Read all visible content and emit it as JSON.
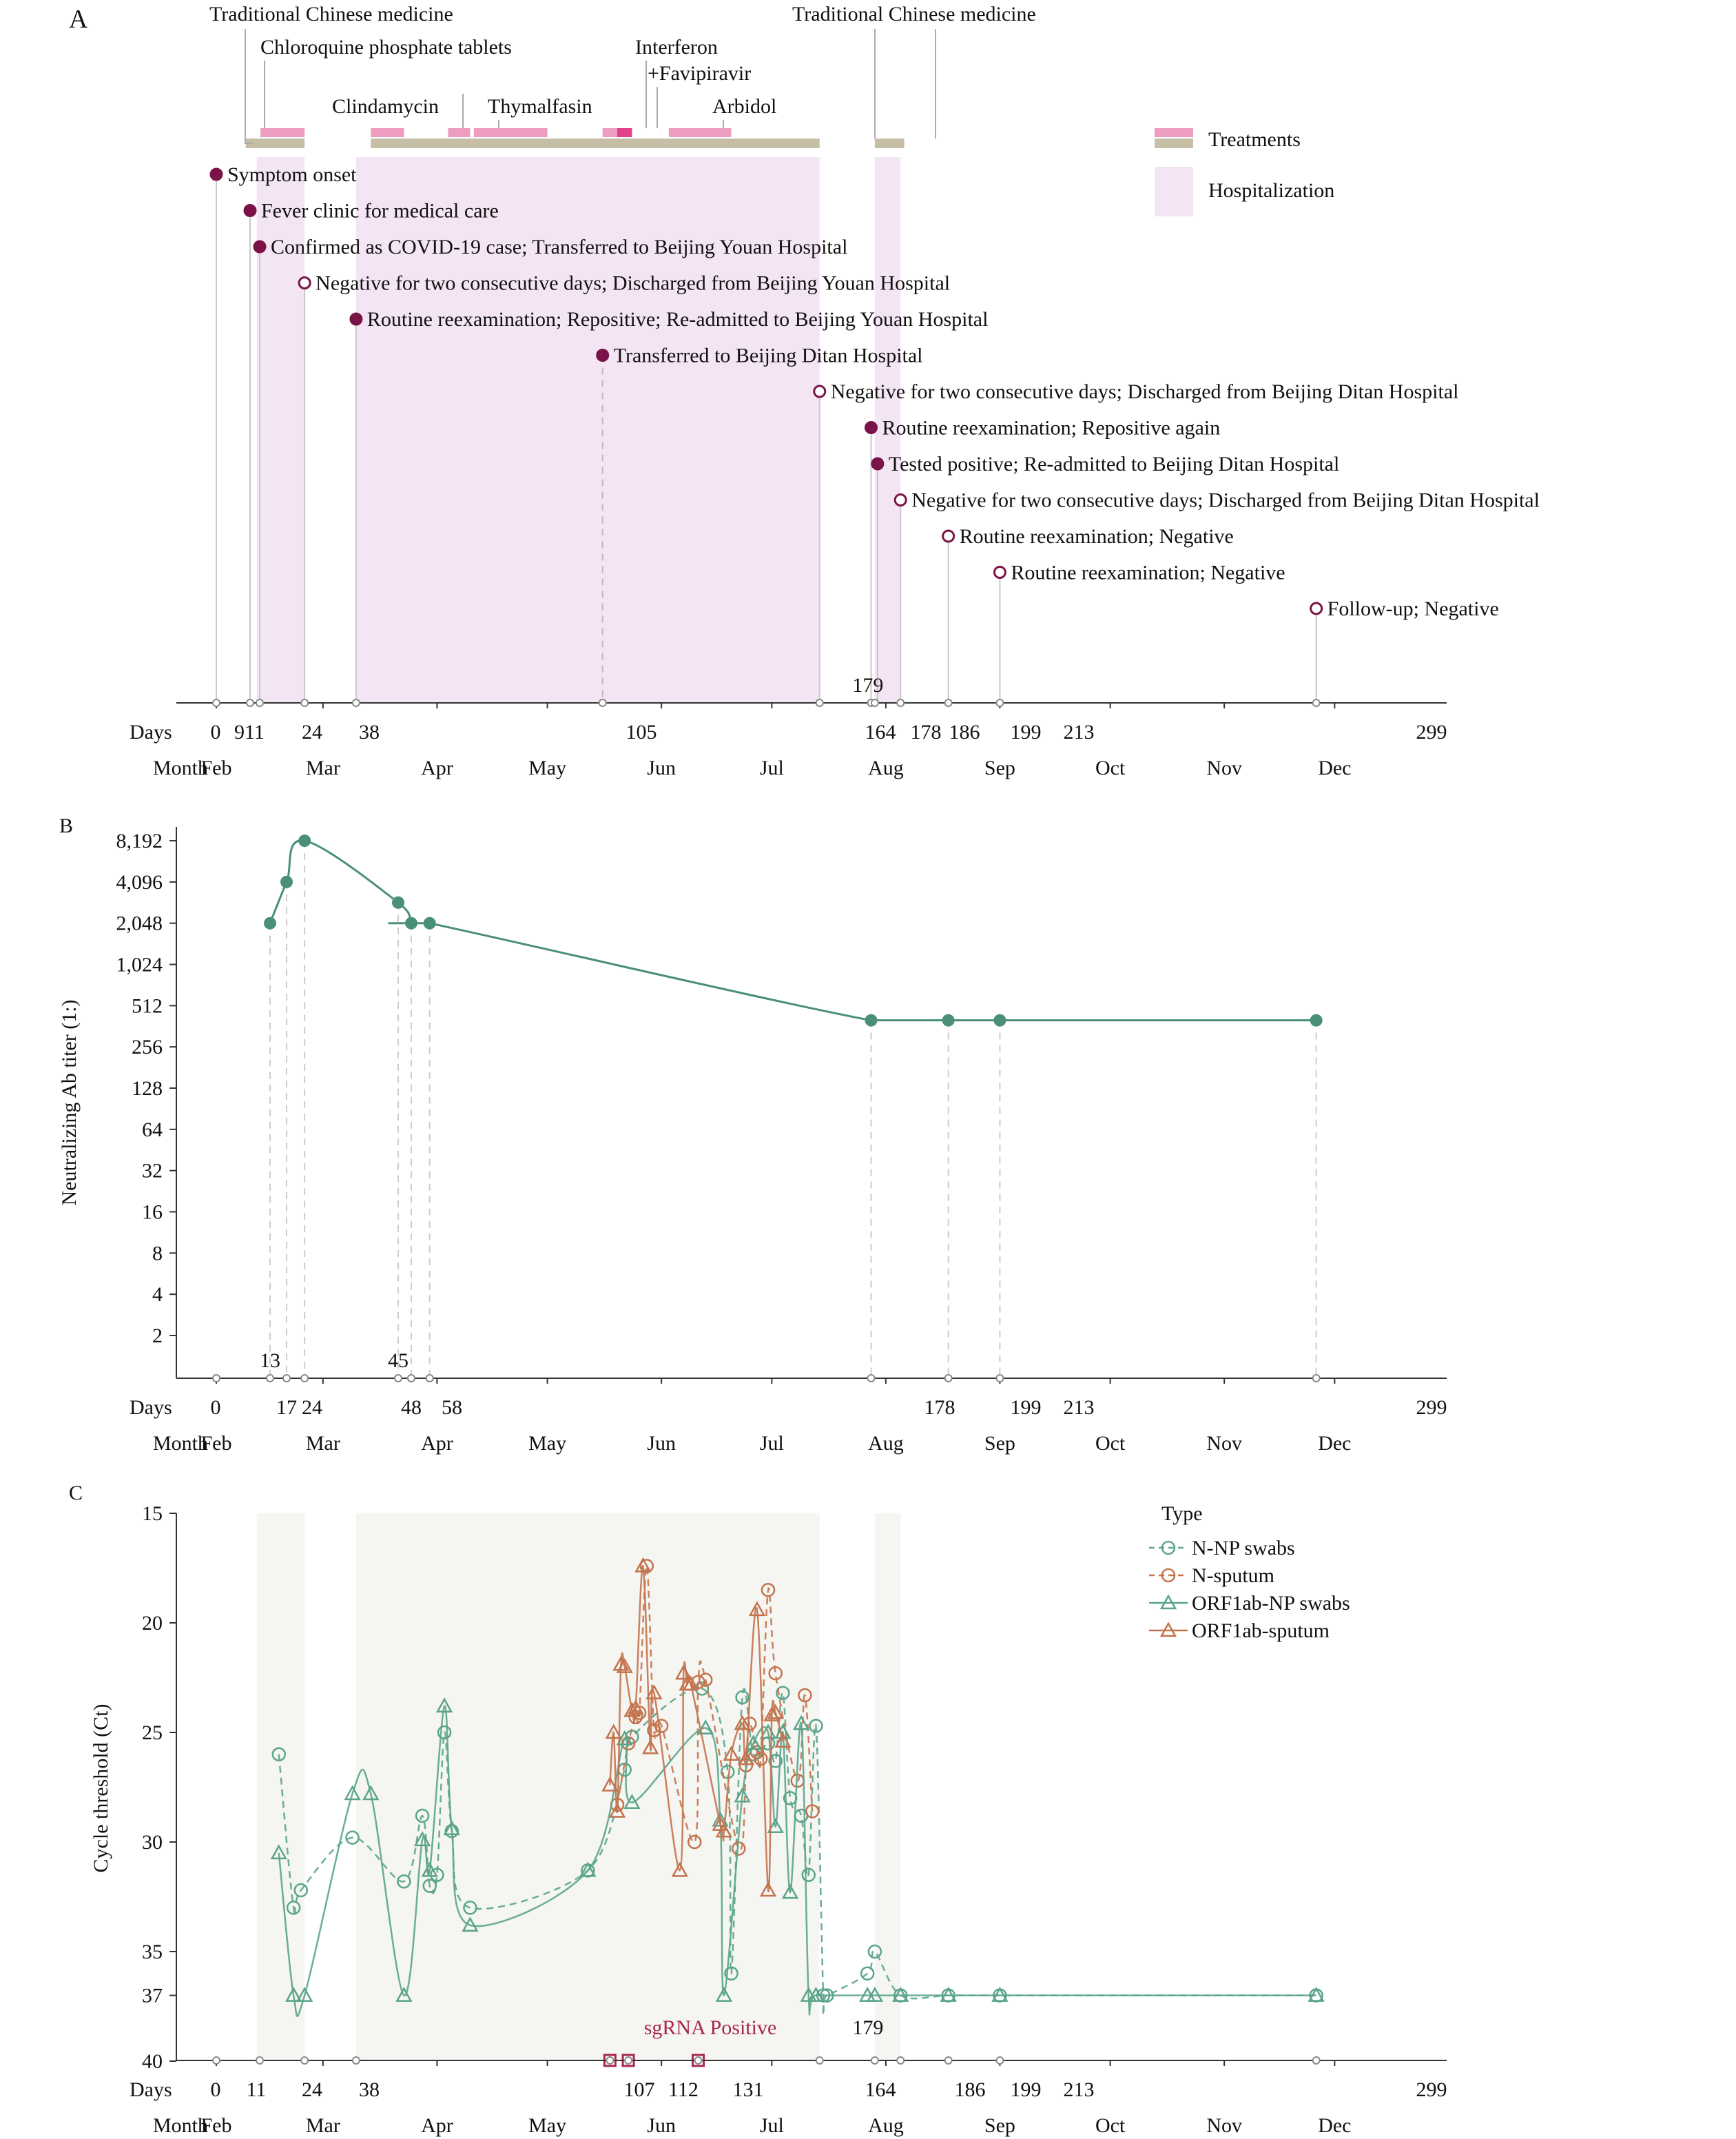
{
  "chart_data": [
    {
      "panel": "A",
      "type": "timeline",
      "x_tick_days": [
        0,
        9,
        11,
        24,
        38,
        105,
        164,
        178,
        179,
        186,
        199,
        213,
        299
      ],
      "tick_labels": [
        "0",
        "911",
        "24",
        "38",
        "105",
        "164",
        "178",
        "186",
        "199",
        "213",
        "299"
      ],
      "extra_label": {
        "text": "179",
        "day": 179
      },
      "axis_labels": {
        "days": "Days",
        "month": "Month"
      },
      "months": [
        {
          "label": "Feb",
          "day": 0
        },
        {
          "label": "Mar",
          "day": 29
        },
        {
          "label": "Apr",
          "day": 60
        },
        {
          "label": "May",
          "day": 90
        },
        {
          "label": "Jun",
          "day": 121
        },
        {
          "label": "Jul",
          "day": 151
        },
        {
          "label": "Aug",
          "day": 182
        },
        {
          "label": "Sep",
          "day": 213
        },
        {
          "label": "Oct",
          "day": 243
        },
        {
          "label": "Nov",
          "day": 274
        },
        {
          "label": "Dec",
          "day": 304
        }
      ],
      "hospitalization": [
        {
          "start": 11,
          "end": 24
        },
        {
          "start": 38,
          "end": 164
        },
        {
          "start": 179,
          "end": 186
        }
      ],
      "treatments": [
        {
          "start": 12,
          "end": 24
        },
        {
          "start": 42,
          "end": 51
        },
        {
          "start": 63,
          "end": 69
        },
        {
          "start": 70,
          "end": 90
        },
        {
          "start": 105,
          "end": 113
        },
        {
          "start": 123,
          "end": 140
        }
      ],
      "treatment_dark": [
        {
          "start": 109,
          "end": 113
        }
      ],
      "treatment_periods": [
        {
          "start": 8,
          "end": 24
        },
        {
          "start": 42,
          "end": 164
        },
        {
          "start": 179,
          "end": 187
        }
      ],
      "drug_labels": [
        {
          "text": "Traditional Chinese medicine",
          "day": 6,
          "level": 0
        },
        {
          "text": "Chloroquine phosphate tablets",
          "day": 12,
          "level": 1
        },
        {
          "text": "Clindamycin",
          "day": 46,
          "level": 2
        },
        {
          "text": "Thymalfasin",
          "day": 70,
          "level": 2
        },
        {
          "text": "Interferon",
          "day": 105,
          "level": 1
        },
        {
          "text": "+Favipiravir",
          "day": 108,
          "level": 1.5
        },
        {
          "text": "Arbidol",
          "day": 124,
          "level": 2
        },
        {
          "text": "Traditional Chinese medicine",
          "day": 164,
          "level": 0
        }
      ],
      "events": [
        {
          "day": 0,
          "text": "Symptom onset",
          "positive": true
        },
        {
          "day": 9,
          "text": "Fever clinic for medical care",
          "positive": true
        },
        {
          "day": 11,
          "text": "Confirmed as COVID-19 case; Transferred to Beijing Youan Hospital",
          "positive": true
        },
        {
          "day": 24,
          "text": "Negative for two consecutive days; Discharged from Beijing Youan Hospital",
          "positive": false
        },
        {
          "day": 38,
          "text": "Routine reexamination; Repositive; Re-admitted to Beijing Youan Hospital",
          "positive": true
        },
        {
          "day": 105,
          "text": "Transferred to Beijing Ditan Hospital",
          "positive": true
        },
        {
          "day": 164,
          "text": "Negative for two consecutive days; Discharged from Beijing Ditan Hospital",
          "positive": false
        },
        {
          "day": 178,
          "text": "Routine reexamination; Repositive again",
          "positive": true
        },
        {
          "day": 179,
          "text": "Tested positive; Re-admitted to Beijing Ditan Hospital",
          "positive": true
        },
        {
          "day": 186,
          "text": "Negative for two consecutive days; Discharged from Beijing Ditan Hospital",
          "positive": false
        },
        {
          "day": 199,
          "text": "Routine reexamination; Negative",
          "positive": false
        },
        {
          "day": 213,
          "text": "Routine reexamination; Negative",
          "positive": false
        },
        {
          "day": 299,
          "text": "Follow-up; Negative",
          "positive": false
        }
      ],
      "legend": [
        {
          "label": "Treatments",
          "color": "#ee9cc0",
          "secondary_color": "#c6bfa6"
        },
        {
          "label": "Hospitalization",
          "color": "#f4e5f4"
        }
      ]
    },
    {
      "panel": "B",
      "type": "line",
      "ylabel": "Neutralizing Ab titer (1:)",
      "y_scale": "log2",
      "y_ticks": [
        "2",
        "4",
        "8",
        "16",
        "32",
        "64",
        "128",
        "256",
        "512",
        "1,024",
        "2,048",
        "4,096",
        "8,192"
      ],
      "x_tick_days": [
        0,
        13,
        17,
        24,
        45,
        48,
        58,
        178,
        199,
        213,
        299
      ],
      "tick_labels": [
        "0",
        "17",
        "24",
        "48",
        "58",
        "178",
        "199",
        "213",
        "299"
      ],
      "upper_labels": [
        {
          "text": "13",
          "day": 13
        },
        {
          "text": "45",
          "day": 45
        }
      ],
      "axis_labels": {
        "days": "Days",
        "month": "Month"
      },
      "series": [
        {
          "name": "",
          "color": "#4a8f78",
          "points": [
            {
              "x": 13,
              "y": 2048
            },
            {
              "x": 17,
              "y": 4096
            },
            {
              "x": 24,
              "y": 8192
            },
            {
              "x": 45,
              "y": 2896
            },
            {
              "x": 48,
              "y": 2048
            },
            {
              "x": 58,
              "y": 2048
            },
            {
              "x": 178,
              "y": 400
            },
            {
              "x": 199,
              "y": 400
            },
            {
              "x": 213,
              "y": 400
            },
            {
              "x": 299,
              "y": 400
            }
          ]
        }
      ]
    },
    {
      "panel": "C",
      "type": "line",
      "ylabel": "Cycle threshold (Ct)",
      "y_inverted": true,
      "y_ticks": [
        15,
        20,
        25,
        30,
        35,
        37,
        40
      ],
      "x_tick_days": [
        0,
        11,
        24,
        38,
        107,
        112,
        131,
        164,
        179,
        186,
        199,
        213,
        299
      ],
      "tick_labels": [
        "0",
        "11",
        "24",
        "38",
        "107",
        "112",
        "131",
        "164",
        "186",
        "199",
        "213",
        "299"
      ],
      "extra_label": {
        "text": "179",
        "day": 179
      },
      "axis_labels": {
        "days": "Days",
        "month": "Month"
      },
      "sgRNA": {
        "label": "sgRNA Positive",
        "days": [
          107,
          112,
          131
        ],
        "color": "#a8264a"
      },
      "shaded": [
        {
          "start": 11,
          "end": 24
        },
        {
          "start": 38,
          "end": 164
        },
        {
          "start": 179,
          "end": 186
        }
      ],
      "legend_title": "Type",
      "series": [
        {
          "name": "N-NP swabs",
          "marker": "circle",
          "color": "#5aa58a",
          "dashed": true,
          "points": [
            [
              17,
              26
            ],
            [
              21,
              33
            ],
            [
              23,
              32.2
            ],
            [
              37,
              29.8
            ],
            [
              51,
              31.8
            ],
            [
              56,
              28.8
            ],
            [
              58,
              32
            ],
            [
              60,
              31.5
            ],
            [
              62,
              25
            ],
            [
              64,
              29.5
            ],
            [
              69,
              33
            ],
            [
              101,
              31.3
            ],
            [
              111,
              26.7
            ],
            [
              113,
              25.2
            ],
            [
              132,
              23
            ],
            [
              139,
              26.8
            ],
            [
              140,
              36
            ],
            [
              143,
              23.4
            ],
            [
              146,
              26
            ],
            [
              150,
              25.5
            ],
            [
              152,
              26.3
            ],
            [
              154,
              23.2
            ],
            [
              156,
              28
            ],
            [
              159,
              28.8
            ],
            [
              161,
              31.5
            ],
            [
              163,
              24.7
            ],
            [
              165,
              37
            ],
            [
              166,
              37
            ],
            [
              177,
              36
            ],
            [
              179,
              35
            ],
            [
              186,
              37
            ],
            [
              199,
              37
            ],
            [
              213,
              37
            ],
            [
              299,
              37
            ]
          ]
        },
        {
          "name": "N-sputum",
          "marker": "circle",
          "color": "#c4734d",
          "dashed": true,
          "points": [
            [
              109,
              28.3
            ],
            [
              112,
              25.5
            ],
            [
              114,
              24.3
            ],
            [
              115,
              24.1
            ],
            [
              117,
              17.4
            ],
            [
              119,
              24.9
            ],
            [
              121,
              24.7
            ],
            [
              130,
              30
            ],
            [
              131,
              22.7
            ],
            [
              133,
              22.6
            ],
            [
              142,
              30.3
            ],
            [
              144,
              26.5
            ],
            [
              145,
              24.6
            ],
            [
              147,
              25.9
            ],
            [
              148,
              26.2
            ],
            [
              150,
              18.5
            ],
            [
              152,
              22.3
            ],
            [
              158,
              27.2
            ],
            [
              160,
              23.3
            ],
            [
              162,
              28.6
            ]
          ]
        },
        {
          "name": "ORF1ab-NP swabs",
          "marker": "triangle",
          "color": "#5aa58a",
          "dashed": false,
          "points": [
            [
              17,
              30.5
            ],
            [
              21,
              37
            ],
            [
              24,
              37
            ],
            [
              37,
              27.8
            ],
            [
              42,
              27.8
            ],
            [
              51,
              37
            ],
            [
              56,
              29.9
            ],
            [
              58,
              31.3
            ],
            [
              62,
              23.8
            ],
            [
              64,
              29.4
            ],
            [
              69,
              33.8
            ],
            [
              101,
              31.3
            ],
            [
              111,
              25.3
            ],
            [
              113,
              28.2
            ],
            [
              133,
              24.8
            ],
            [
              137,
              29
            ],
            [
              138,
              37
            ],
            [
              143,
              27.9
            ],
            [
              146,
              25.5
            ],
            [
              150,
              25
            ],
            [
              152,
              29.3
            ],
            [
              154,
              25
            ],
            [
              156,
              32.3
            ],
            [
              159,
              24.6
            ],
            [
              161,
              37
            ],
            [
              163,
              37
            ],
            [
              177,
              37
            ],
            [
              179,
              37
            ],
            [
              186,
              37
            ],
            [
              199,
              37
            ],
            [
              213,
              37
            ],
            [
              299,
              37
            ]
          ]
        },
        {
          "name": "ORF1ab-sputum",
          "marker": "triangle",
          "color": "#c4734d",
          "dashed": false,
          "points": [
            [
              107,
              27.4
            ],
            [
              108,
              25
            ],
            [
              109,
              28.6
            ],
            [
              110,
              21.9
            ],
            [
              111,
              22
            ],
            [
              113,
              24
            ],
            [
              114,
              23.9
            ],
            [
              116,
              17.4
            ],
            [
              118,
              25.7
            ],
            [
              119,
              23.2
            ],
            [
              126,
              31.3
            ],
            [
              127,
              22.3
            ],
            [
              128,
              22.8
            ],
            [
              129,
              22.8
            ],
            [
              137,
              29.2
            ],
            [
              138,
              29.5
            ],
            [
              140,
              26
            ],
            [
              143,
              24.6
            ],
            [
              144,
              26.2
            ],
            [
              147,
              19.4
            ],
            [
              150,
              32.2
            ],
            [
              151,
              24.2
            ],
            [
              152,
              24.1
            ],
            [
              154,
              25.4
            ]
          ]
        }
      ]
    }
  ],
  "panel_labels": {
    "A": "A",
    "B": "B",
    "C": "C"
  }
}
